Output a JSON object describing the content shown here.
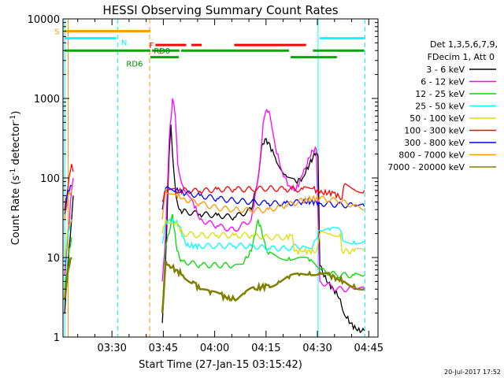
{
  "chart_data": {
    "type": "line",
    "title": "HESSI Observing Summary Count Rates",
    "xlabel": "Start Time (27-Jan-15 03:15:42)",
    "ylabel_main": "Count Rate (s",
    "ylabel_sup1": "-1",
    "ylabel_mid": " detector",
    "ylabel_sup2": "-1",
    "ylabel_end": ")",
    "footer_date": "20-Jul-2017 17:52",
    "x_range_minutes": [
      0,
      92
    ],
    "y_range": [
      1,
      10000
    ],
    "y_scale": "log",
    "y_ticks": [
      {
        "v": 1,
        "label": "1"
      },
      {
        "v": 10,
        "label": "10"
      },
      {
        "v": 100,
        "label": "100"
      },
      {
        "v": 1000,
        "label": "1000"
      },
      {
        "v": 10000,
        "label": "10000"
      }
    ],
    "x_ticks": [
      {
        "m": 14.3,
        "label": "03:30"
      },
      {
        "m": 29.3,
        "label": "03:45"
      },
      {
        "m": 44.3,
        "label": "04:00"
      },
      {
        "m": 59.3,
        "label": "04:15"
      },
      {
        "m": 74.3,
        "label": "04:30"
      },
      {
        "m": 89.3,
        "label": "04:45"
      }
    ],
    "legend": {
      "header1": "Det 1,3,5,6,7,9,",
      "header2": "FDecim 1, Att 0",
      "placement": "right"
    },
    "series": [
      {
        "name": "3 - 6 keV",
        "color": "#000000",
        "points": [
          [
            0.5,
            2
          ],
          [
            1.5,
            8
          ],
          [
            2.5,
            30
          ],
          [
            3,
            60
          ],
          [
            29,
            1.5
          ],
          [
            30,
            10
          ],
          [
            31,
            200
          ],
          [
            31.5,
            470
          ],
          [
            32,
            200
          ],
          [
            33,
            60
          ],
          [
            34,
            40
          ],
          [
            35,
            38
          ],
          [
            40,
            35
          ],
          [
            45,
            34
          ],
          [
            50,
            32
          ],
          [
            55,
            40
          ],
          [
            57,
            100
          ],
          [
            58,
            250
          ],
          [
            59,
            310
          ],
          [
            60,
            280
          ],
          [
            62,
            180
          ],
          [
            65,
            110
          ],
          [
            68,
            90
          ],
          [
            70,
            100
          ],
          [
            72,
            150
          ],
          [
            73,
            180
          ],
          [
            74,
            210
          ],
          [
            74.5,
            190
          ],
          [
            75,
            8
          ],
          [
            77,
            5
          ],
          [
            79,
            4
          ],
          [
            81,
            3
          ],
          [
            82,
            2
          ],
          [
            84,
            1.5
          ],
          [
            86,
            1.2
          ],
          [
            88,
            1.2
          ]
        ]
      },
      {
        "name": "6 - 12 keV",
        "color": "#ff00ff",
        "points": [
          [
            0.5,
            6
          ],
          [
            1.5,
            20
          ],
          [
            2.5,
            70
          ],
          [
            3,
            100
          ],
          [
            29,
            5
          ],
          [
            30,
            20
          ],
          [
            31,
            300
          ],
          [
            32,
            1000
          ],
          [
            32.8,
            600
          ],
          [
            33.5,
            150
          ],
          [
            35,
            80
          ],
          [
            38,
            50
          ],
          [
            40,
            30
          ],
          [
            45,
            25
          ],
          [
            50,
            22
          ],
          [
            55,
            30
          ],
          [
            57,
            100
          ],
          [
            58.5,
            500
          ],
          [
            59.5,
            720
          ],
          [
            60.5,
            600
          ],
          [
            62,
            250
          ],
          [
            64,
            120
          ],
          [
            66,
            80
          ],
          [
            68,
            70
          ],
          [
            70,
            110
          ],
          [
            72,
            180
          ],
          [
            73,
            220
          ],
          [
            74,
            230
          ],
          [
            75,
            5
          ],
          [
            80,
            4
          ],
          [
            85,
            4
          ],
          [
            88,
            4
          ]
        ]
      },
      {
        "name": "12 - 25 keV",
        "color": "#00dd00",
        "points": [
          [
            0.5,
            4
          ],
          [
            1.5,
            10
          ],
          [
            2.5,
            18
          ],
          [
            29,
            2
          ],
          [
            30,
            14
          ],
          [
            31,
            20
          ],
          [
            32,
            35
          ],
          [
            33,
            15
          ],
          [
            34,
            10
          ],
          [
            35,
            9
          ],
          [
            40,
            8
          ],
          [
            45,
            8
          ],
          [
            50,
            8
          ],
          [
            53,
            9
          ],
          [
            55,
            12
          ],
          [
            57,
            30
          ],
          [
            58,
            22
          ],
          [
            59,
            15
          ],
          [
            60,
            11
          ],
          [
            63,
            10
          ],
          [
            66,
            10
          ],
          [
            69,
            10
          ],
          [
            72,
            9
          ],
          [
            75,
            7
          ],
          [
            80,
            6
          ],
          [
            85,
            6
          ],
          [
            88,
            6
          ]
        ]
      },
      {
        "name": "25 - 50 keV",
        "color": "#00ffff",
        "points": [
          [
            0.5,
            8
          ],
          [
            1.5,
            20
          ],
          [
            2.5,
            30
          ],
          [
            29,
            15
          ],
          [
            30,
            28
          ],
          [
            32,
            30
          ],
          [
            34,
            25
          ],
          [
            36,
            14
          ],
          [
            40,
            14
          ],
          [
            45,
            14
          ],
          [
            50,
            14
          ],
          [
            55,
            14
          ],
          [
            60,
            13
          ],
          [
            65,
            13
          ],
          [
            70,
            14
          ],
          [
            73,
            14
          ],
          [
            75,
            22
          ],
          [
            78,
            22
          ],
          [
            81,
            22
          ],
          [
            82,
            16
          ],
          [
            85,
            16
          ],
          [
            88,
            16
          ]
        ]
      },
      {
        "name": "50 - 100 keV",
        "color": "#dddd00",
        "points": [
          [
            0.5,
            10
          ],
          [
            1.5,
            25
          ],
          [
            2.5,
            30
          ],
          [
            29,
            20
          ],
          [
            30,
            30
          ],
          [
            33,
            28
          ],
          [
            35,
            20
          ],
          [
            40,
            19
          ],
          [
            45,
            19
          ],
          [
            50,
            19
          ],
          [
            55,
            19
          ],
          [
            60,
            18
          ],
          [
            65,
            18
          ],
          [
            67,
            19
          ],
          [
            67.5,
            12
          ],
          [
            70,
            12
          ],
          [
            74,
            12
          ],
          [
            75,
            20
          ],
          [
            78,
            20
          ],
          [
            81,
            20
          ],
          [
            81.5,
            12
          ],
          [
            85,
            12
          ],
          [
            88,
            12
          ]
        ]
      },
      {
        "name": "100 - 300 keV",
        "color": "#ff0000",
        "points": [
          [
            0.5,
            40
          ],
          [
            1.5,
            80
          ],
          [
            2.5,
            150
          ],
          [
            3,
            120
          ],
          [
            29,
            50
          ],
          [
            30,
            70
          ],
          [
            33,
            68
          ],
          [
            35,
            70
          ],
          [
            40,
            68
          ],
          [
            45,
            72
          ],
          [
            50,
            72
          ],
          [
            55,
            72
          ],
          [
            60,
            74
          ],
          [
            65,
            72
          ],
          [
            70,
            72
          ],
          [
            73,
            74
          ],
          [
            75,
            65
          ],
          [
            79,
            65
          ],
          [
            81.5,
            55
          ],
          [
            82,
            80
          ],
          [
            85,
            72
          ],
          [
            88,
            70
          ]
        ]
      },
      {
        "name": "300 - 800 keV",
        "color": "#0000ff",
        "points": [
          [
            0.5,
            35
          ],
          [
            1.5,
            70
          ],
          [
            2.5,
            80
          ],
          [
            29,
            40
          ],
          [
            30,
            75
          ],
          [
            33,
            70
          ],
          [
            35,
            65
          ],
          [
            40,
            60
          ],
          [
            45,
            55
          ],
          [
            50,
            52
          ],
          [
            55,
            50
          ],
          [
            60,
            48
          ],
          [
            65,
            48
          ],
          [
            70,
            50
          ],
          [
            74,
            50
          ],
          [
            75,
            48
          ],
          [
            80,
            46
          ],
          [
            85,
            45
          ],
          [
            88,
            44
          ]
        ]
      },
      {
        "name": "800 - 7000 keV",
        "color": "#ff9900",
        "points": [
          [
            0.5,
            30
          ],
          [
            1.5,
            60
          ],
          [
            2.5,
            70
          ],
          [
            29,
            30
          ],
          [
            30,
            70
          ],
          [
            33,
            62
          ],
          [
            35,
            55
          ],
          [
            40,
            48
          ],
          [
            45,
            42
          ],
          [
            50,
            40
          ],
          [
            55,
            39
          ],
          [
            60,
            40
          ],
          [
            65,
            45
          ],
          [
            70,
            52
          ],
          [
            74,
            56
          ],
          [
            75,
            55
          ],
          [
            80,
            52
          ],
          [
            85,
            45
          ],
          [
            88,
            40
          ]
        ]
      },
      {
        "name": "7000 - 20000 keV",
        "color": "#808000",
        "points": [
          [
            0.5,
            3
          ],
          [
            1.5,
            7
          ],
          [
            2.5,
            10
          ],
          [
            29,
            2
          ],
          [
            30,
            9
          ],
          [
            31,
            8
          ],
          [
            33,
            7
          ],
          [
            35,
            6
          ],
          [
            38,
            5
          ],
          [
            40,
            4
          ],
          [
            43,
            3.5
          ],
          [
            46,
            3.5
          ],
          [
            48,
            3
          ],
          [
            50,
            3
          ],
          [
            53,
            3.5
          ],
          [
            56,
            4
          ],
          [
            60,
            4.5
          ],
          [
            63,
            5
          ],
          [
            66,
            5.5
          ],
          [
            69,
            6
          ],
          [
            72,
            6.5
          ],
          [
            75,
            6.5
          ],
          [
            78,
            6
          ],
          [
            80,
            5.5
          ],
          [
            82,
            5
          ],
          [
            85,
            4.5
          ],
          [
            88,
            4
          ]
        ]
      }
    ],
    "state_bars": [
      {
        "label": "S",
        "color": "#ff9900",
        "y": 7000,
        "segments": [
          [
            0.6,
            25.5
          ]
        ],
        "label_m": -2.5,
        "label_color": "#ff9900"
      },
      {
        "label": "N",
        "color": "#00ffff",
        "y": 5700,
        "segments": [
          [
            0.6,
            15.5
          ],
          [
            75,
            88
          ]
        ],
        "label_m": 17,
        "label_color": "#00ffff"
      },
      {
        "label": "F",
        "color": "#ff0000",
        "y": 4700,
        "segments": [
          [
            27,
            36
          ],
          [
            37.5,
            40.5
          ],
          [
            50,
            71
          ]
        ],
        "label_m": 25.2,
        "label_color": "#ff0000"
      },
      {
        "label": "RD0",
        "color": "#00aa00",
        "y": 4000,
        "segments": [
          [
            0.6,
            25.5
          ],
          [
            26,
            34
          ],
          [
            34.5,
            66
          ],
          [
            73,
            88
          ]
        ],
        "label_m": 26.5,
        "label_color": "#008800"
      },
      {
        "label": "RD6",
        "color": "#00aa00",
        "y": 3300,
        "segments": [
          [
            25.5,
            33.8
          ],
          [
            66.5,
            80
          ]
        ],
        "label_m": 18.5,
        "label_color": "#008800"
      }
    ],
    "vertical_lines": [
      {
        "m": 0.5,
        "color": "#00ffff",
        "style": "solid"
      },
      {
        "m": 1.5,
        "color": "#ff9900",
        "style": "solid"
      },
      {
        "m": 16,
        "color": "#00ffff",
        "style": "dashed"
      },
      {
        "m": 25.3,
        "color": "#ff9900",
        "style": "dashed"
      },
      {
        "m": 74.5,
        "color": "#00ffff",
        "style": "solid"
      },
      {
        "m": 88.2,
        "color": "#00ffff",
        "style": "dashed"
      }
    ]
  }
}
